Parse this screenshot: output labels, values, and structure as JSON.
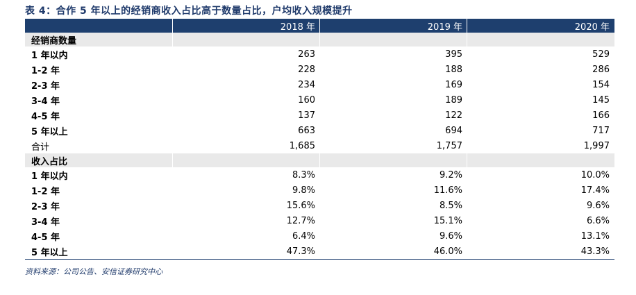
{
  "title": "表 4：合作 5 年以上的经销商收入占比高于数量占比，户均收入规模提升",
  "columns": [
    "2018 年",
    "2019 年",
    "2020 年"
  ],
  "sections": [
    {
      "label": "经销商数量",
      "rows": [
        {
          "label": "1 年以内",
          "values": [
            "263",
            "395",
            "529"
          ]
        },
        {
          "label": "1-2 年",
          "values": [
            "228",
            "188",
            "286"
          ]
        },
        {
          "label": "2-3 年",
          "values": [
            "234",
            "169",
            "154"
          ]
        },
        {
          "label": "3-4 年",
          "values": [
            "160",
            "189",
            "145"
          ]
        },
        {
          "label": "4-5 年",
          "values": [
            "137",
            "122",
            "166"
          ]
        },
        {
          "label": "5 年以上",
          "values": [
            "663",
            "694",
            "717"
          ]
        },
        {
          "label": "合计",
          "values": [
            "1,685",
            "1,757",
            "1,997"
          ]
        }
      ]
    },
    {
      "label": "收入占比",
      "rows": [
        {
          "label": "1 年以内",
          "values": [
            "8.3%",
            "9.2%",
            "10.0%"
          ]
        },
        {
          "label": "1-2 年",
          "values": [
            "9.8%",
            "11.6%",
            "17.4%"
          ]
        },
        {
          "label": "2-3 年",
          "values": [
            "15.6%",
            "8.5%",
            "9.6%"
          ]
        },
        {
          "label": "3-4 年",
          "values": [
            "12.7%",
            "15.1%",
            "6.6%"
          ]
        },
        {
          "label": "4-5 年",
          "values": [
            "6.4%",
            "9.6%",
            "13.1%"
          ]
        },
        {
          "label": "5 年以上",
          "values": [
            "47.3%",
            "46.0%",
            "43.3%"
          ]
        }
      ]
    }
  ],
  "source": "资料来源：公司公告、安信证券研究中心",
  "colors": {
    "header_bg": "#1e3f6e",
    "section_bg": "#e9e9e9",
    "title_text": "#1f3a6b"
  }
}
